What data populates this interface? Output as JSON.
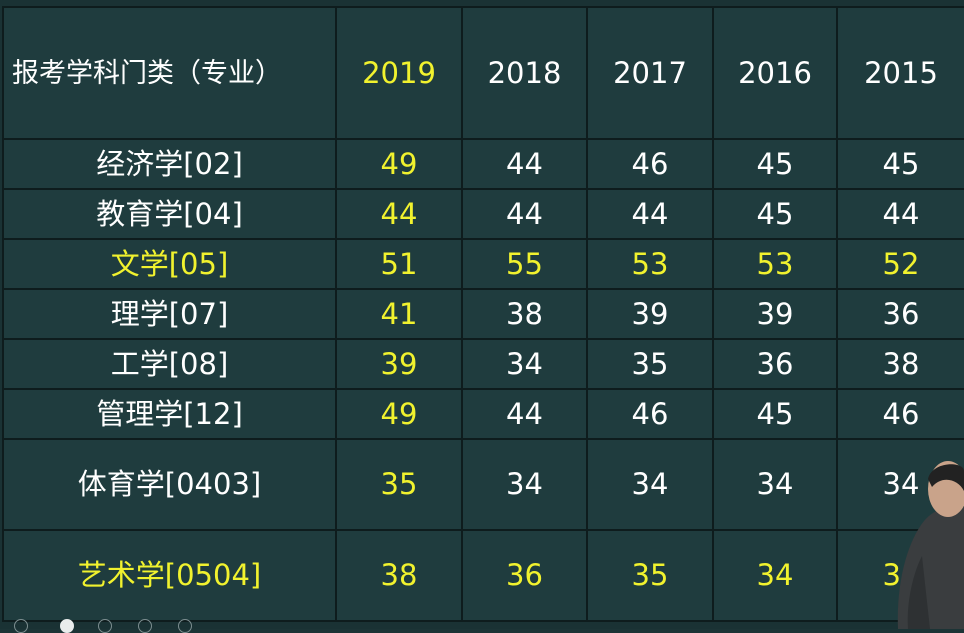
{
  "table": {
    "header": [
      "报考学科门类（专业）",
      "2019",
      "2018",
      "2017",
      "2016",
      "2015"
    ],
    "highlight_header_index": 1,
    "rows": [
      {
        "label": "经济学[02]",
        "values": [
          "49",
          "44",
          "46",
          "45",
          "45"
        ],
        "highlight_row": false
      },
      {
        "label": "教育学[04]",
        "values": [
          "44",
          "44",
          "44",
          "45",
          "44"
        ],
        "highlight_row": false
      },
      {
        "label": "文学[05]",
        "values": [
          "51",
          "55",
          "53",
          "53",
          "52"
        ],
        "highlight_row": true
      },
      {
        "label": "理学[07]",
        "values": [
          "41",
          "38",
          "39",
          "39",
          "36"
        ],
        "highlight_row": false
      },
      {
        "label": "工学[08]",
        "values": [
          "39",
          "34",
          "35",
          "36",
          "38"
        ],
        "highlight_row": false
      },
      {
        "label": "管理学[12]",
        "values": [
          "49",
          "44",
          "46",
          "45",
          "46"
        ],
        "highlight_row": false
      },
      {
        "label": "体育学[0403]",
        "values": [
          "35",
          "34",
          "34",
          "34",
          "34"
        ],
        "highlight_row": false
      },
      {
        "label": "艺术学[0504]",
        "values": [
          "38",
          "36",
          "35",
          "34",
          "34"
        ],
        "highlight_row": true
      }
    ]
  },
  "colors": {
    "highlight": "#f1f22e",
    "text": "#ffffff",
    "cell_background": "#1f3c3e",
    "border": "#0e1c1d"
  },
  "presenter": "person-image"
}
